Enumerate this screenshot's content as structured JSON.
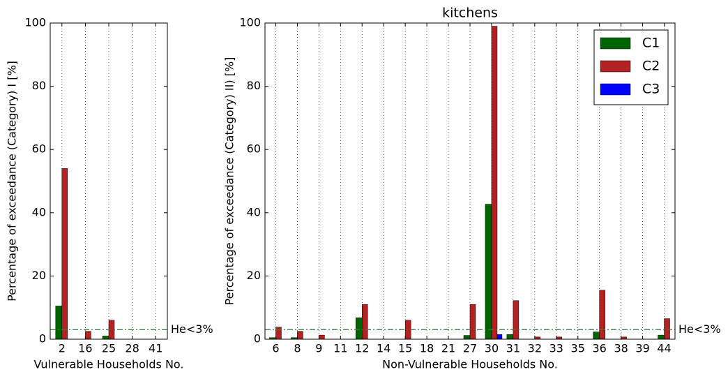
{
  "chart_data": [
    {
      "type": "bar",
      "xlabel": "Vulnerable Households No.",
      "ylabel": "Percentage of exceedance (Category) I [%]",
      "categories": [
        "2",
        "16",
        "25",
        "28",
        "41"
      ],
      "series": [
        {
          "color": "#006400",
          "values": [
            10.5,
            0,
            1,
            0,
            0
          ]
        },
        {
          "color": "#b22222",
          "values": [
            54,
            2.5,
            6,
            0,
            0
          ]
        },
        {
          "color": "#0000ff",
          "values": [
            0,
            0,
            0,
            0,
            0
          ]
        }
      ],
      "ylim": [
        0,
        100
      ],
      "yticks": [
        0,
        20,
        40,
        60,
        80,
        100
      ],
      "grid": true,
      "threshold": {
        "value": 3,
        "label": "He<3%"
      }
    },
    {
      "type": "bar",
      "title": "kitchens",
      "xlabel": "Non-Vulnerable Households No.",
      "ylabel": "Percentage of exceedance (Category) II) [%]",
      "categories": [
        "6",
        "8",
        "9",
        "11",
        "12",
        "14",
        "15",
        "18",
        "21",
        "27",
        "30",
        "31",
        "32",
        "33",
        "35",
        "36",
        "38",
        "39",
        "44"
      ],
      "series": [
        {
          "name": "C1",
          "color": "#006400",
          "values": [
            0.5,
            0.5,
            0,
            0,
            6.8,
            0,
            0,
            0,
            0,
            1.2,
            42.7,
            1.5,
            0,
            0,
            0,
            2.3,
            0,
            0,
            1.3
          ]
        },
        {
          "name": "C2",
          "color": "#b22222",
          "values": [
            3.8,
            2.5,
            1.3,
            0,
            11,
            0,
            6,
            0,
            0,
            11,
            99,
            12.2,
            0.7,
            0.7,
            0,
            15.5,
            0.7,
            0,
            6.5
          ]
        },
        {
          "name": "C3",
          "color": "#0000ff",
          "values": [
            0,
            0,
            0,
            0,
            0,
            0,
            0,
            0,
            0,
            0,
            1.5,
            0,
            0,
            0,
            0,
            0,
            0,
            0,
            0
          ]
        }
      ],
      "ylim": [
        0,
        100
      ],
      "yticks": [
        0,
        20,
        40,
        60,
        80,
        100
      ],
      "grid": true,
      "legend": "upper right",
      "threshold": {
        "value": 3,
        "label": "He<3%"
      }
    }
  ]
}
